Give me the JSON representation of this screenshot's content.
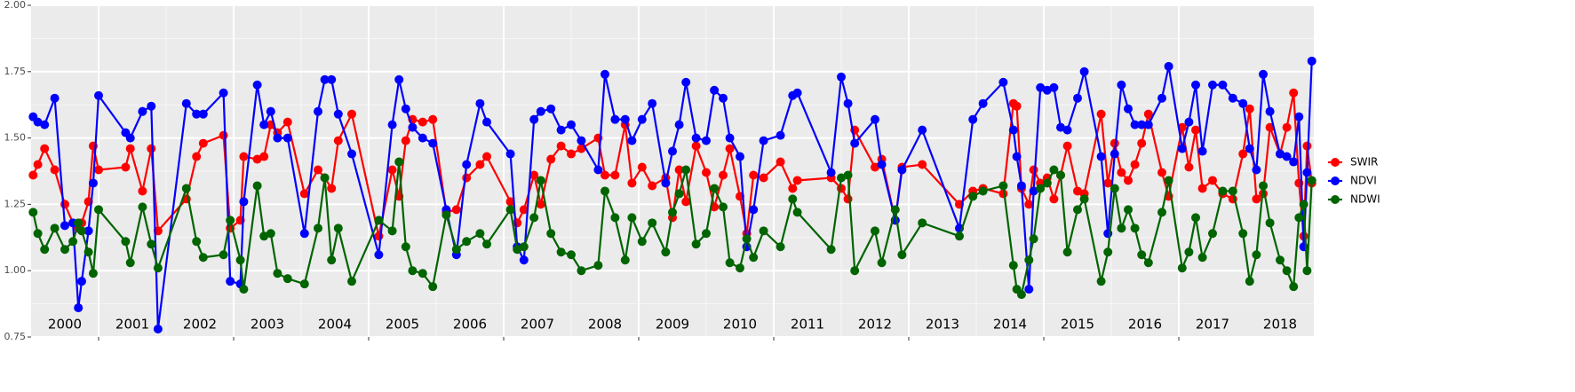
{
  "chart_data": {
    "type": "line",
    "x": [
      2000.03,
      2000.1,
      2000.2,
      2000.35,
      2000.5,
      2000.62,
      2000.7,
      2000.75,
      2000.85,
      2000.92,
      2001.0,
      2001.4,
      2001.47,
      2001.65,
      2001.78,
      2001.88,
      2002.3,
      2002.45,
      2002.55,
      2002.85,
      2002.95,
      2003.1,
      2003.15,
      2003.35,
      2003.45,
      2003.55,
      2003.65,
      2003.8,
      2004.05,
      2004.25,
      2004.35,
      2004.45,
      2004.55,
      2004.75,
      2005.15,
      2005.35,
      2005.45,
      2005.55,
      2005.65,
      2005.8,
      2005.95,
      2006.15,
      2006.3,
      2006.45,
      2006.65,
      2006.75,
      2007.1,
      2007.2,
      2007.3,
      2007.45,
      2007.55,
      2007.7,
      2007.85,
      2008.0,
      2008.15,
      2008.4,
      2008.5,
      2008.65,
      2008.8,
      2008.9,
      2009.05,
      2009.2,
      2009.4,
      2009.5,
      2009.6,
      2009.7,
      2009.85,
      2010.0,
      2010.12,
      2010.25,
      2010.35,
      2010.5,
      2010.6,
      2010.7,
      2010.85,
      2011.1,
      2011.28,
      2011.35,
      2011.85,
      2012.0,
      2012.1,
      2012.2,
      2012.5,
      2012.6,
      2012.8,
      2012.9,
      2013.2,
      2013.75,
      2013.95,
      2014.1,
      2014.4,
      2014.55,
      2014.6,
      2014.67,
      2014.78,
      2014.85,
      2014.95,
      2015.05,
      2015.15,
      2015.25,
      2015.35,
      2015.5,
      2015.6,
      2015.85,
      2015.95,
      2016.05,
      2016.15,
      2016.25,
      2016.35,
      2016.45,
      2016.55,
      2016.75,
      2016.85,
      2017.05,
      2017.15,
      2017.25,
      2017.35,
      2017.5,
      2017.65,
      2017.8,
      2017.95,
      2018.05,
      2018.15,
      2018.25,
      2018.35,
      2018.5,
      2018.6,
      2018.7,
      2018.78,
      2018.85,
      2018.9,
      2018.97
    ],
    "series": [
      {
        "name": "SWIR",
        "color": "#ff0000",
        "values": [
          1.36,
          1.4,
          1.46,
          1.38,
          1.25,
          1.18,
          1.16,
          1.18,
          1.26,
          1.47,
          1.38,
          1.39,
          1.46,
          1.3,
          1.46,
          1.15,
          1.27,
          1.43,
          1.48,
          1.51,
          1.16,
          1.19,
          1.43,
          1.42,
          1.43,
          1.55,
          1.52,
          1.56,
          1.29,
          1.38,
          1.35,
          1.31,
          1.49,
          1.59,
          1.13,
          1.38,
          1.28,
          1.49,
          1.57,
          1.56,
          1.57,
          1.22,
          1.23,
          1.35,
          1.4,
          1.43,
          1.26,
          1.18,
          1.23,
          1.36,
          1.25,
          1.42,
          1.47,
          1.44,
          1.46,
          1.5,
          1.36,
          1.36,
          1.55,
          1.33,
          1.39,
          1.32,
          1.35,
          1.2,
          1.38,
          1.26,
          1.47,
          1.37,
          1.24,
          1.36,
          1.46,
          1.28,
          1.14,
          1.36,
          1.35,
          1.41,
          1.31,
          1.34,
          1.35,
          1.31,
          1.27,
          1.53,
          1.39,
          1.42,
          1.19,
          1.39,
          1.4,
          1.25,
          1.3,
          1.31,
          1.29,
          1.63,
          1.62,
          1.31,
          1.25,
          1.38,
          1.33,
          1.35,
          1.27,
          1.36,
          1.47,
          1.3,
          1.29,
          1.59,
          1.33,
          1.48,
          1.37,
          1.34,
          1.4,
          1.48,
          1.59,
          1.37,
          1.28,
          1.54,
          1.39,
          1.53,
          1.31,
          1.34,
          1.29,
          1.27,
          1.44,
          1.61,
          1.27,
          1.29,
          1.54,
          1.44,
          1.54,
          1.67,
          1.33,
          1.13,
          1.47,
          1.33
        ]
      },
      {
        "name": "NDVI",
        "color": "#0000ff",
        "values": [
          1.58,
          1.56,
          1.55,
          1.65,
          1.17,
          1.18,
          0.86,
          0.96,
          1.15,
          1.33,
          1.66,
          1.52,
          1.5,
          1.6,
          1.62,
          0.78,
          1.63,
          1.59,
          1.59,
          1.67,
          0.96,
          0.95,
          1.26,
          1.7,
          1.55,
          1.6,
          1.5,
          1.5,
          1.14,
          1.6,
          1.72,
          1.72,
          1.59,
          1.44,
          1.06,
          1.55,
          1.72,
          1.61,
          1.54,
          1.5,
          1.48,
          1.23,
          1.06,
          1.4,
          1.63,
          1.56,
          1.44,
          1.09,
          1.04,
          1.57,
          1.6,
          1.61,
          1.53,
          1.55,
          1.49,
          1.38,
          1.74,
          1.57,
          1.57,
          1.49,
          1.57,
          1.63,
          1.33,
          1.45,
          1.55,
          1.71,
          1.5,
          1.49,
          1.68,
          1.65,
          1.5,
          1.43,
          1.09,
          1.23,
          1.49,
          1.51,
          1.66,
          1.67,
          1.37,
          1.73,
          1.63,
          1.48,
          1.57,
          1.4,
          1.19,
          1.38,
          1.53,
          1.16,
          1.57,
          1.63,
          1.71,
          1.53,
          1.43,
          1.32,
          0.93,
          1.3,
          1.69,
          1.68,
          1.69,
          1.54,
          1.53,
          1.65,
          1.75,
          1.43,
          1.14,
          1.44,
          1.7,
          1.61,
          1.55,
          1.55,
          1.55,
          1.65,
          1.77,
          1.46,
          1.56,
          1.7,
          1.45,
          1.7,
          1.7,
          1.65,
          1.63,
          1.46,
          1.38,
          1.74,
          1.6,
          1.44,
          1.43,
          1.41,
          1.58,
          1.09,
          1.37,
          1.79
        ]
      },
      {
        "name": "NDWI",
        "color": "#006400",
        "values": [
          1.22,
          1.14,
          1.08,
          1.16,
          1.08,
          1.11,
          1.18,
          1.15,
          1.07,
          0.99,
          1.23,
          1.11,
          1.03,
          1.24,
          1.1,
          1.01,
          1.31,
          1.11,
          1.05,
          1.06,
          1.19,
          1.04,
          0.93,
          1.32,
          1.13,
          1.14,
          0.99,
          0.97,
          0.95,
          1.16,
          1.35,
          1.04,
          1.16,
          0.96,
          1.19,
          1.15,
          1.41,
          1.09,
          1.0,
          0.99,
          0.94,
          1.21,
          1.08,
          1.11,
          1.14,
          1.1,
          1.23,
          1.08,
          1.09,
          1.2,
          1.34,
          1.14,
          1.07,
          1.06,
          1.0,
          1.02,
          1.3,
          1.2,
          1.04,
          1.2,
          1.11,
          1.18,
          1.07,
          1.22,
          1.29,
          1.38,
          1.1,
          1.14,
          1.31,
          1.24,
          1.03,
          1.01,
          1.12,
          1.05,
          1.15,
          1.09,
          1.27,
          1.22,
          1.08,
          1.35,
          1.36,
          1.0,
          1.15,
          1.03,
          1.23,
          1.06,
          1.18,
          1.13,
          1.28,
          1.3,
          1.32,
          1.02,
          0.93,
          0.91,
          1.04,
          1.12,
          1.31,
          1.33,
          1.38,
          1.36,
          1.07,
          1.23,
          1.27,
          0.96,
          1.07,
          1.31,
          1.16,
          1.23,
          1.16,
          1.06,
          1.03,
          1.22,
          1.34,
          1.01,
          1.07,
          1.2,
          1.05,
          1.14,
          1.3,
          1.3,
          1.14,
          0.96,
          1.06,
          1.32,
          1.18,
          1.04,
          1.0,
          0.94,
          1.2,
          1.25,
          1.0,
          1.34
        ]
      }
    ],
    "year_labels": [
      "2000",
      "2001",
      "2002",
      "2003",
      "2004",
      "2005",
      "2006",
      "2007",
      "2008",
      "2009",
      "2010",
      "2011",
      "2012",
      "2013",
      "2014",
      "2015",
      "2016",
      "2017",
      "2018"
    ],
    "xlim": [
      2000,
      2019
    ],
    "xticks": [
      2001,
      2003,
      2005,
      2007,
      2009,
      2011,
      2013,
      2015,
      2017
    ],
    "ylim": [
      0.75,
      2.0
    ],
    "yticks": [
      {
        "value": 0.75,
        "label": "0.75"
      },
      {
        "value": 1.0,
        "label": "1.00"
      },
      {
        "value": 1.25,
        "label": "1.25"
      },
      {
        "value": 1.5,
        "label": "1.50"
      },
      {
        "value": 1.75,
        "label": "1.75"
      },
      {
        "value": 2.0,
        "label": "2.00"
      }
    ],
    "grid": true,
    "legend": "right"
  }
}
